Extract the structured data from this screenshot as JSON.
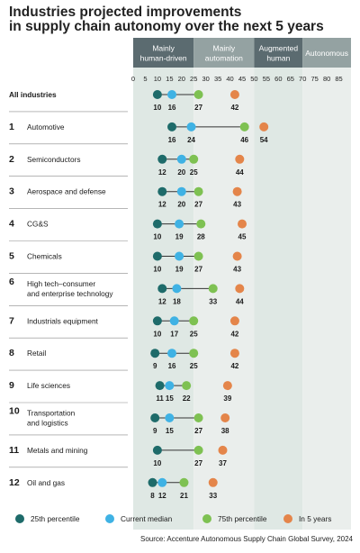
{
  "chart_data": {
    "type": "dot-range",
    "title": [
      "Industries projected improvements",
      "in supply chain autonomy over the next 5 years"
    ],
    "x_ticks": [
      0,
      5,
      10,
      15,
      20,
      25,
      30,
      35,
      40,
      45,
      50,
      55,
      60,
      65,
      70,
      75,
      80,
      85
    ],
    "xlim": [
      0,
      90
    ],
    "bands": [
      {
        "label": [
          "Mainly",
          "human-driven"
        ],
        "range": [
          0,
          25
        ],
        "color": "#5b6b70",
        "fill": "#dfe8e4"
      },
      {
        "label": [
          "Mainly",
          "automation"
        ],
        "range": [
          25,
          50
        ],
        "color": "#94a2a2",
        "fill": "#eaeeec"
      },
      {
        "label": [
          "Augmented",
          "human"
        ],
        "range": [
          50,
          70
        ],
        "color": "#5b6b70",
        "fill": "#dfe8e4"
      },
      {
        "label": [
          "Autonomous"
        ],
        "range": [
          70,
          90
        ],
        "color": "#94a2a2",
        "fill": "#eaeeec"
      }
    ],
    "series": [
      {
        "name": "25th percentile",
        "color": "#1e6b6a"
      },
      {
        "name": "Current median",
        "color": "#3fb2e4"
      },
      {
        "name": "75th percentile",
        "color": "#7ec152"
      },
      {
        "name": "In 5 years",
        "color": "#e4854a"
      }
    ],
    "rows": [
      {
        "num": "",
        "label": [
          "All industries"
        ],
        "p25": 10,
        "median": 16,
        "p75": 27,
        "in5": 42,
        "labels": [
          "10",
          "16",
          "27",
          "42"
        ]
      },
      {
        "num": "1",
        "label": [
          "Automotive"
        ],
        "p25": 16,
        "median": 24,
        "p75": 46,
        "in5": 54,
        "labels": [
          "16",
          "24",
          "46",
          "54"
        ]
      },
      {
        "num": "2",
        "label": [
          "Semiconductors"
        ],
        "p25": 12,
        "median": 20,
        "p75": 25,
        "in5": 44,
        "labels": [
          "12",
          "20",
          "25",
          "44"
        ]
      },
      {
        "num": "3",
        "label": [
          "Aerospace and defense"
        ],
        "p25": 12,
        "median": 20,
        "p75": 27,
        "in5": 43,
        "labels": [
          "12",
          "20",
          "27",
          "43"
        ]
      },
      {
        "num": "4",
        "label": [
          "CG&S"
        ],
        "p25": 10,
        "median": 19,
        "p75": 28,
        "in5": 45,
        "labels": [
          "10",
          "19",
          "28",
          "45"
        ]
      },
      {
        "num": "5",
        "label": [
          "Chemicals"
        ],
        "p25": 10,
        "median": 19,
        "p75": 27,
        "in5": 43,
        "labels": [
          "10",
          "19",
          "27",
          "43"
        ]
      },
      {
        "num": "6",
        "label": [
          "High tech–consumer",
          "and enterprise technology"
        ],
        "p25": 12,
        "median": 18,
        "p75": 33,
        "in5": 44,
        "labels": [
          "12",
          "18",
          "33",
          "44"
        ]
      },
      {
        "num": "7",
        "label": [
          "Industrials equipment"
        ],
        "p25": 10,
        "median": 17,
        "p75": 25,
        "in5": 42,
        "labels": [
          "10",
          "17",
          "25",
          "42"
        ]
      },
      {
        "num": "8",
        "label": [
          "Retail"
        ],
        "p25": 9,
        "median": 16,
        "p75": 25,
        "in5": 42,
        "labels": [
          "9",
          "16",
          "25",
          "42"
        ]
      },
      {
        "num": "9",
        "label": [
          "Life sciences"
        ],
        "p25": 11,
        "median": 15,
        "p75": 22,
        "in5": 39,
        "labels": [
          "11",
          "15",
          "22",
          "39"
        ]
      },
      {
        "num": "10",
        "label": [
          "Transportation",
          "and logistics"
        ],
        "p25": 9,
        "median": 15,
        "p75": 27,
        "in5": 38,
        "labels": [
          "9",
          "15",
          "27",
          "38"
        ]
      },
      {
        "num": "11",
        "label": [
          "Metals and mining"
        ],
        "p25": 10,
        "median": null,
        "p75": 27,
        "in5": 37,
        "labels": [
          "10",
          "",
          "27",
          "37"
        ]
      },
      {
        "num": "12",
        "label": [
          "Oil and gas"
        ],
        "p25": 8,
        "median": 12,
        "p75": 21,
        "in5": 33,
        "labels": [
          "8",
          "12",
          "21",
          "33"
        ]
      }
    ],
    "source": "Source: Accenture Autonomous Supply Chain Global Survey, 2024"
  }
}
